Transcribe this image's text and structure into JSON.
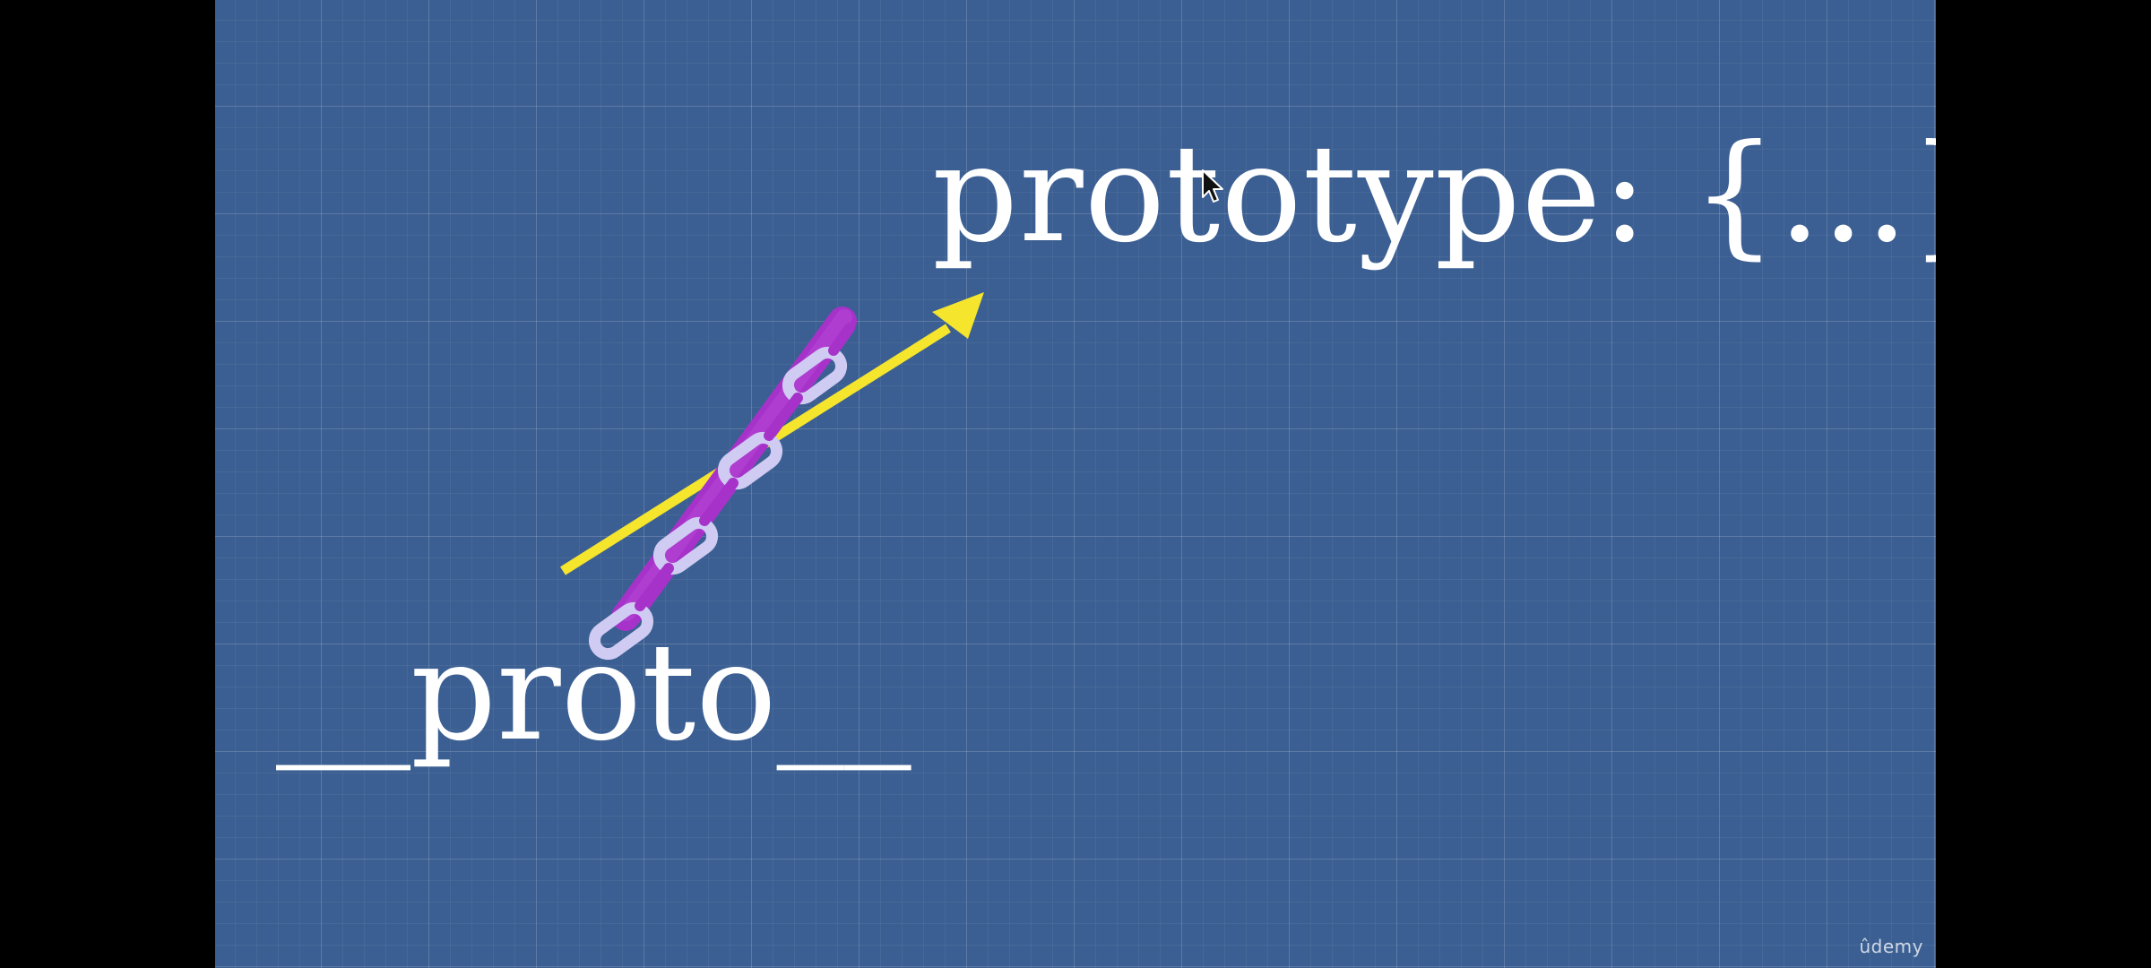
{
  "slide": {
    "top_label": "prototype: {...}",
    "bottom_label": "__proto__"
  },
  "watermark": {
    "brand": "ûdemy"
  },
  "diagram": {
    "arrow_icon": "up-right-arrow-icon",
    "chain_icon": "chain-link-icon",
    "arrow_color": "#f5e52c",
    "chain_outer_color": "#a632c9",
    "chain_inner_color": "#cfcbf2",
    "background_color": "#3b5f92",
    "text_color": "#ffffff"
  },
  "cursor": {
    "icon": "mouse-pointer-icon"
  }
}
